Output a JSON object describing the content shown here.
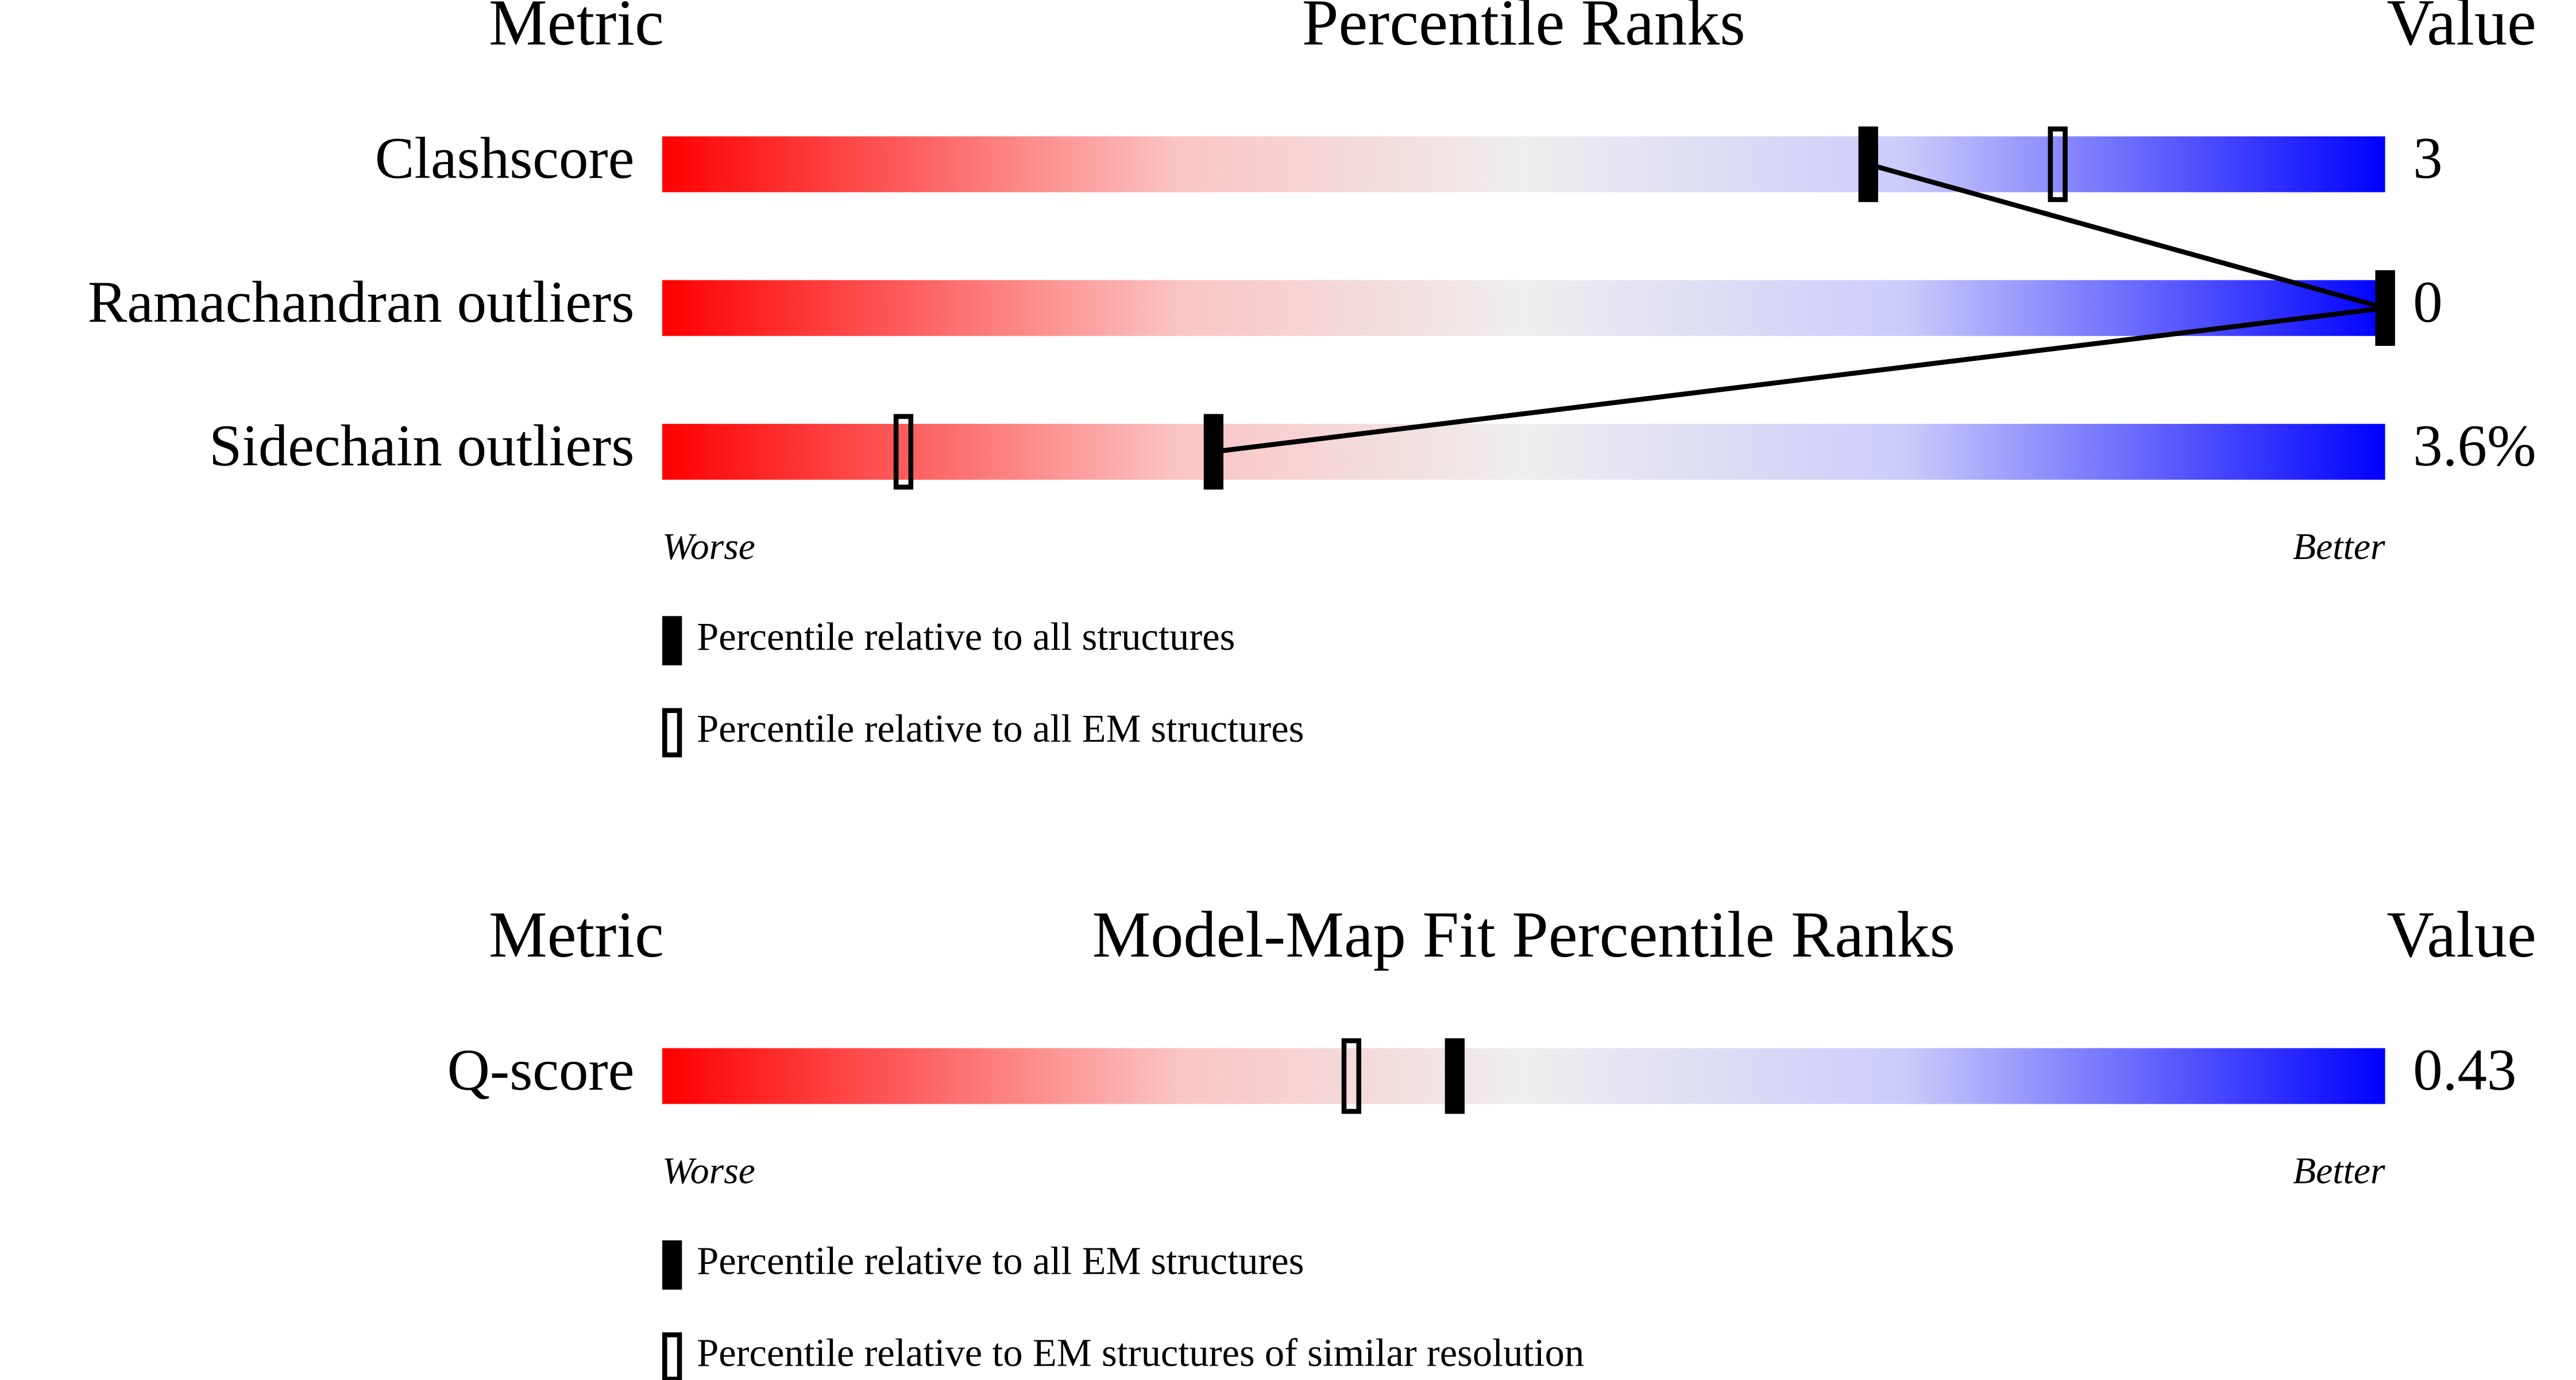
{
  "chart_data": [
    {
      "type": "percentile",
      "metric_header": "Metric",
      "title": "Percentile Ranks",
      "value_header": "Value",
      "categories": [
        "Clashscore",
        "Ramachandran outliers",
        "Sidechain outliers"
      ],
      "value_labels": [
        "3",
        "0",
        "3.6%"
      ],
      "series": [
        {
          "name": "Percentile relative to all structures",
          "color": "#000000",
          "style": "filled",
          "values": [
            70,
            100,
            32
          ]
        },
        {
          "name": "Percentile relative to all EM structures",
          "color": "#000000",
          "style": "open",
          "values": [
            81,
            100,
            14
          ]
        }
      ],
      "xlim": [
        0,
        100
      ],
      "worse": "Worse",
      "better": "Better"
    },
    {
      "type": "percentile",
      "metric_header": "Metric",
      "title": "Model-Map Fit Percentile Ranks",
      "value_header": "Value",
      "categories": [
        "Q-score"
      ],
      "value_labels": [
        "0.43"
      ],
      "series": [
        {
          "name": "Percentile relative to all EM structures",
          "color": "#000000",
          "style": "filled",
          "values": [
            46
          ]
        },
        {
          "name": "Percentile relative to EM structures of similar resolution",
          "color": "#000000",
          "style": "open",
          "values": [
            40
          ]
        }
      ],
      "xlim": [
        0,
        100
      ],
      "worse": "Worse",
      "better": "Better"
    }
  ]
}
